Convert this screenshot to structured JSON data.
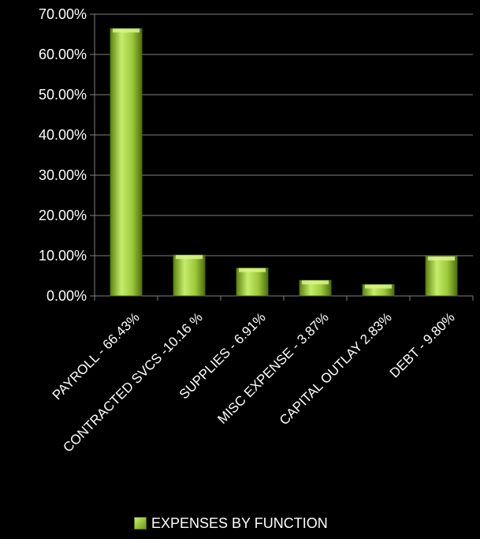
{
  "chart_data": {
    "type": "bar",
    "categories": [
      "PAYROLL - 66.43%",
      "CONTRACTED SVCS -10.16 %",
      "SUPPLIES - 6.91%",
      "MISC EXPENSE - 3.87%",
      "CAPITAL OUTLAY 2.83%",
      "DEBT - 9.80%"
    ],
    "series": [
      {
        "name": "EXPENSES BY FUNCTION",
        "values": [
          66.43,
          10.16,
          6.91,
          3.87,
          2.83,
          9.8
        ]
      }
    ],
    "ylim": [
      0,
      70
    ],
    "yticks": [
      "0.00%",
      "10.00%",
      "20.00%",
      "30.00%",
      "40.00%",
      "50.00%",
      "60.00%",
      "70.00%"
    ],
    "grid": true,
    "legend_position": "bottom",
    "colors": {
      "bar_light": "#c6ec6c",
      "bar_dark": "#6e9a12",
      "background": "#000000",
      "text": "#ffffff",
      "grid": "#7f7f7f"
    }
  }
}
